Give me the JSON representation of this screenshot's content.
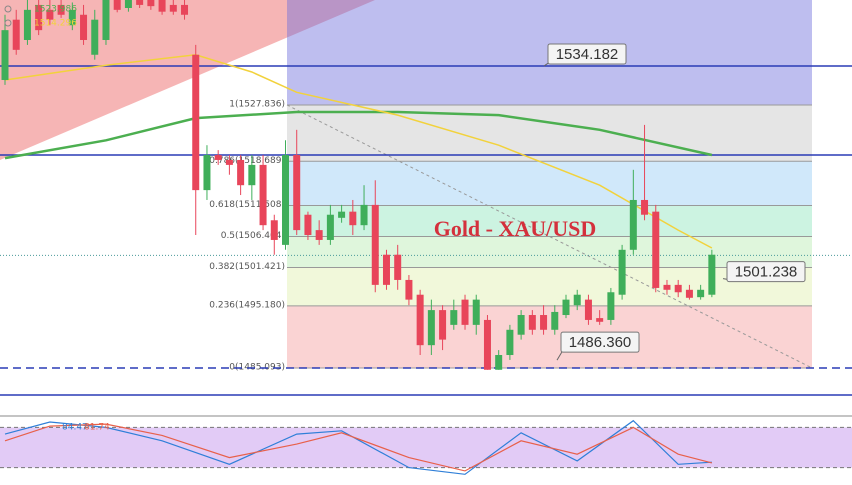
{
  "chart_data": {
    "type": "candlestick",
    "title": "Gold - XAU/USD",
    "ylim": [
      1477.45,
      1544.9
    ],
    "up_color": "#3fae5a",
    "down_color": "#e8455a",
    "open": [
      1531.9,
      1541.7,
      1538.4,
      1544.1,
      1543.3,
      1544.1,
      1540.8,
      1542.5,
      1536.0,
      1538.4,
      1544.9,
      1543.6,
      1544.9,
      1544.9,
      1544.9,
      1544.1,
      1544.1,
      1536.0,
      1514.0,
      1519.7,
      1518.9,
      1518.9,
      1514.8,
      1518.1,
      1509.1,
      1505.1,
      1519.7,
      1510.0,
      1507.5,
      1505.9,
      1509.5,
      1510.5,
      1508.3,
      1511.6,
      1503.5,
      1503.5,
      1499.4,
      1497.0,
      1488.8,
      1494.5,
      1492.1,
      1496.2,
      1492.1,
      1492.9,
      1484.8,
      1487.2,
      1490.5,
      1493.7,
      1493.7,
      1491.3,
      1493.7,
      1495.3,
      1496.2,
      1493.2,
      1492.9,
      1497.0,
      1504.3,
      1512.4,
      1510.5,
      1498.6,
      1498.6,
      1497.8,
      1496.6,
      1497.0
    ],
    "high": [
      1542.5,
      1543.3,
      1544.9,
      1544.9,
      1544.9,
      1544.9,
      1544.5,
      1544.1,
      1543.3,
      1544.9,
      1544.9,
      1544.9,
      1544.9,
      1544.9,
      1544.9,
      1544.9,
      1544.9,
      1537.6,
      1521.3,
      1520.5,
      1519.7,
      1519.7,
      1519.7,
      1519.7,
      1510.0,
      1522.1,
      1523.8,
      1510.5,
      1509.1,
      1511.6,
      1511.6,
      1512.4,
      1514.8,
      1515.6,
      1504.3,
      1505.1,
      1500.2,
      1497.8,
      1496.2,
      1495.3,
      1496.2,
      1497.0,
      1497.0,
      1493.7,
      1488.0,
      1492.1,
      1494.5,
      1494.5,
      1495.3,
      1495.3,
      1497.0,
      1497.8,
      1497.0,
      1494.5,
      1498.1,
      1505.1,
      1517.3,
      1524.6,
      1511.6,
      1499.4,
      1499.4,
      1498.6,
      1498.6,
      1504.3
    ],
    "low": [
      1531.1,
      1536.0,
      1537.6,
      1539.2,
      1540.8,
      1542.0,
      1540.0,
      1537.6,
      1535.2,
      1537.6,
      1542.9,
      1543.0,
      1543.6,
      1543.3,
      1542.5,
      1542.5,
      1541.7,
      1506.7,
      1512.4,
      1518.1,
      1516.5,
      1513.2,
      1512.4,
      1507.5,
      1503.5,
      1504.3,
      1506.7,
      1505.9,
      1505.1,
      1505.1,
      1508.7,
      1506.7,
      1507.5,
      1497.4,
      1497.8,
      1497.8,
      1495.3,
      1487.2,
      1487.2,
      1488.0,
      1491.3,
      1491.3,
      1490.5,
      1484.8,
      1484.8,
      1486.4,
      1489.7,
      1490.5,
      1490.5,
      1490.5,
      1493.2,
      1494.5,
      1492.1,
      1492.1,
      1492.1,
      1496.2,
      1503.5,
      1509.1,
      1497.4,
      1497.0,
      1496.6,
      1496.2,
      1496.2,
      1496.6
    ],
    "close": [
      1540.0,
      1536.8,
      1543.3,
      1540.0,
      1541.7,
      1542.5,
      1543.3,
      1538.4,
      1541.7,
      1544.9,
      1543.3,
      1544.9,
      1544.1,
      1543.9,
      1543.0,
      1543.0,
      1542.5,
      1514.0,
      1519.7,
      1518.9,
      1518.1,
      1514.8,
      1518.1,
      1508.3,
      1505.9,
      1519.7,
      1507.5,
      1506.7,
      1505.9,
      1510.0,
      1510.5,
      1508.3,
      1511.6,
      1498.6,
      1498.6,
      1499.4,
      1496.2,
      1488.8,
      1494.5,
      1489.7,
      1494.5,
      1492.1,
      1496.2,
      1484.8,
      1487.2,
      1491.3,
      1493.7,
      1491.3,
      1491.3,
      1494.2,
      1496.2,
      1497.0,
      1492.9,
      1492.6,
      1497.4,
      1504.3,
      1512.4,
      1510.0,
      1498.1,
      1497.8,
      1497.4,
      1496.5,
      1497.8,
      1503.5
    ],
    "series": [
      {
        "name": "1523.986",
        "color": "#4caf50",
        "x": [
          0,
          9,
          17,
          26,
          35,
          44,
          53,
          63
        ],
        "values": [
          1519.2,
          1522.1,
          1525.7,
          1526.7,
          1526.7,
          1526.2,
          1523.8,
          1519.7
        ]
      },
      {
        "name": "1514.296",
        "color": "#f2d23c",
        "x": [
          0,
          9,
          17,
          22,
          26,
          35,
          44,
          53,
          60,
          63
        ],
        "values": [
          1531.9,
          1534.3,
          1536.0,
          1533.2,
          1529.9,
          1526.2,
          1521.3,
          1514.8,
          1507.5,
          1504.6
        ]
      }
    ],
    "fib_levels": [
      {
        "value": 1527.836,
        "label": "1(1527.836)"
      },
      {
        "value": 1518.689,
        "label": "0.786(1518.689)"
      },
      {
        "value": 1511.508,
        "label": "0.618(1511.508)"
      },
      {
        "value": 1506.464,
        "label": "0.5(1506.464)"
      },
      {
        "value": 1501.421,
        "label": "0.382(1501.421)"
      },
      {
        "value": 1495.18,
        "label": "0.236(1495.180)"
      },
      {
        "value": 1485.093,
        "label": "0(1485.093)"
      }
    ],
    "fib_colors": [
      "rgba(110,110,220,0.45)",
      "rgba(170,170,170,0.3)",
      "rgba(120,190,240,0.35)",
      "rgba(110,220,170,0.35)",
      "rgba(150,225,140,0.3)",
      "rgba(215,235,150,0.35)",
      "rgba(240,130,130,0.35)"
    ],
    "levels": [
      1534.182,
      1519.7,
      1480.7
    ],
    "dotted_level": 1503.4,
    "callouts": [
      1534.182,
      1501.238,
      {
        "value": 1486.36,
        "label": "1486.360"
      }
    ],
    "oscillator": {
      "ylim": [
        0,
        100
      ],
      "band": [
        20,
        80
      ],
      "labels": [
        "84.47",
        "81.74"
      ],
      "series": [
        {
          "color": "#2f7fd8",
          "x": [
            0,
            4,
            9,
            14,
            20,
            26,
            30,
            36,
            41,
            46,
            51,
            56,
            60,
            63
          ],
          "values": [
            70,
            88,
            80,
            60,
            25,
            70,
            75,
            20,
            10,
            72,
            30,
            90,
            25,
            28
          ]
        },
        {
          "color": "#e8604a",
          "x": [
            0,
            4,
            9,
            14,
            20,
            26,
            30,
            36,
            41,
            46,
            51,
            56,
            60,
            63
          ],
          "values": [
            60,
            82,
            85,
            68,
            35,
            55,
            72,
            35,
            15,
            60,
            40,
            80,
            40,
            27
          ]
        }
      ]
    }
  }
}
